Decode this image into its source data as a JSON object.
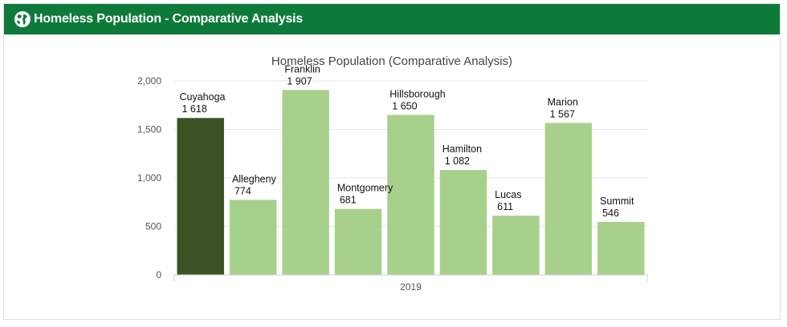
{
  "header": {
    "icon": "globe-icon",
    "title": "Homeless Population - Comparative Analysis"
  },
  "colors": {
    "header_bg": "#0e7a3a",
    "highlight_bar": "#3b5323",
    "bar": "#a8d08d"
  },
  "chart_data": {
    "type": "bar",
    "title": "Homeless Population (Comparative Analysis)",
    "xlabel": "",
    "ylabel": "",
    "category_axis_label": "2019",
    "ylim": [
      0,
      2000
    ],
    "yticks": [
      0,
      500,
      1000,
      1500,
      2000
    ],
    "ytick_labels": [
      "0",
      "500",
      "1,000",
      "1,500",
      "2,000"
    ],
    "grid": true,
    "legend": "none",
    "highlight_index": 0,
    "series": [
      {
        "label": "Cuyahoga",
        "value": 1618,
        "value_label": "1 618"
      },
      {
        "label": "Allegheny",
        "value": 774,
        "value_label": "774"
      },
      {
        "label": "Franklin",
        "value": 1907,
        "value_label": "1 907"
      },
      {
        "label": "Montgomery",
        "value": 681,
        "value_label": "681"
      },
      {
        "label": "Hillsborough",
        "value": 1650,
        "value_label": "1 650"
      },
      {
        "label": "Hamilton",
        "value": 1082,
        "value_label": "1 082"
      },
      {
        "label": "Lucas",
        "value": 611,
        "value_label": "611"
      },
      {
        "label": "Marion",
        "value": 1567,
        "value_label": "1 567"
      },
      {
        "label": "Summit",
        "value": 546,
        "value_label": "546"
      }
    ]
  }
}
